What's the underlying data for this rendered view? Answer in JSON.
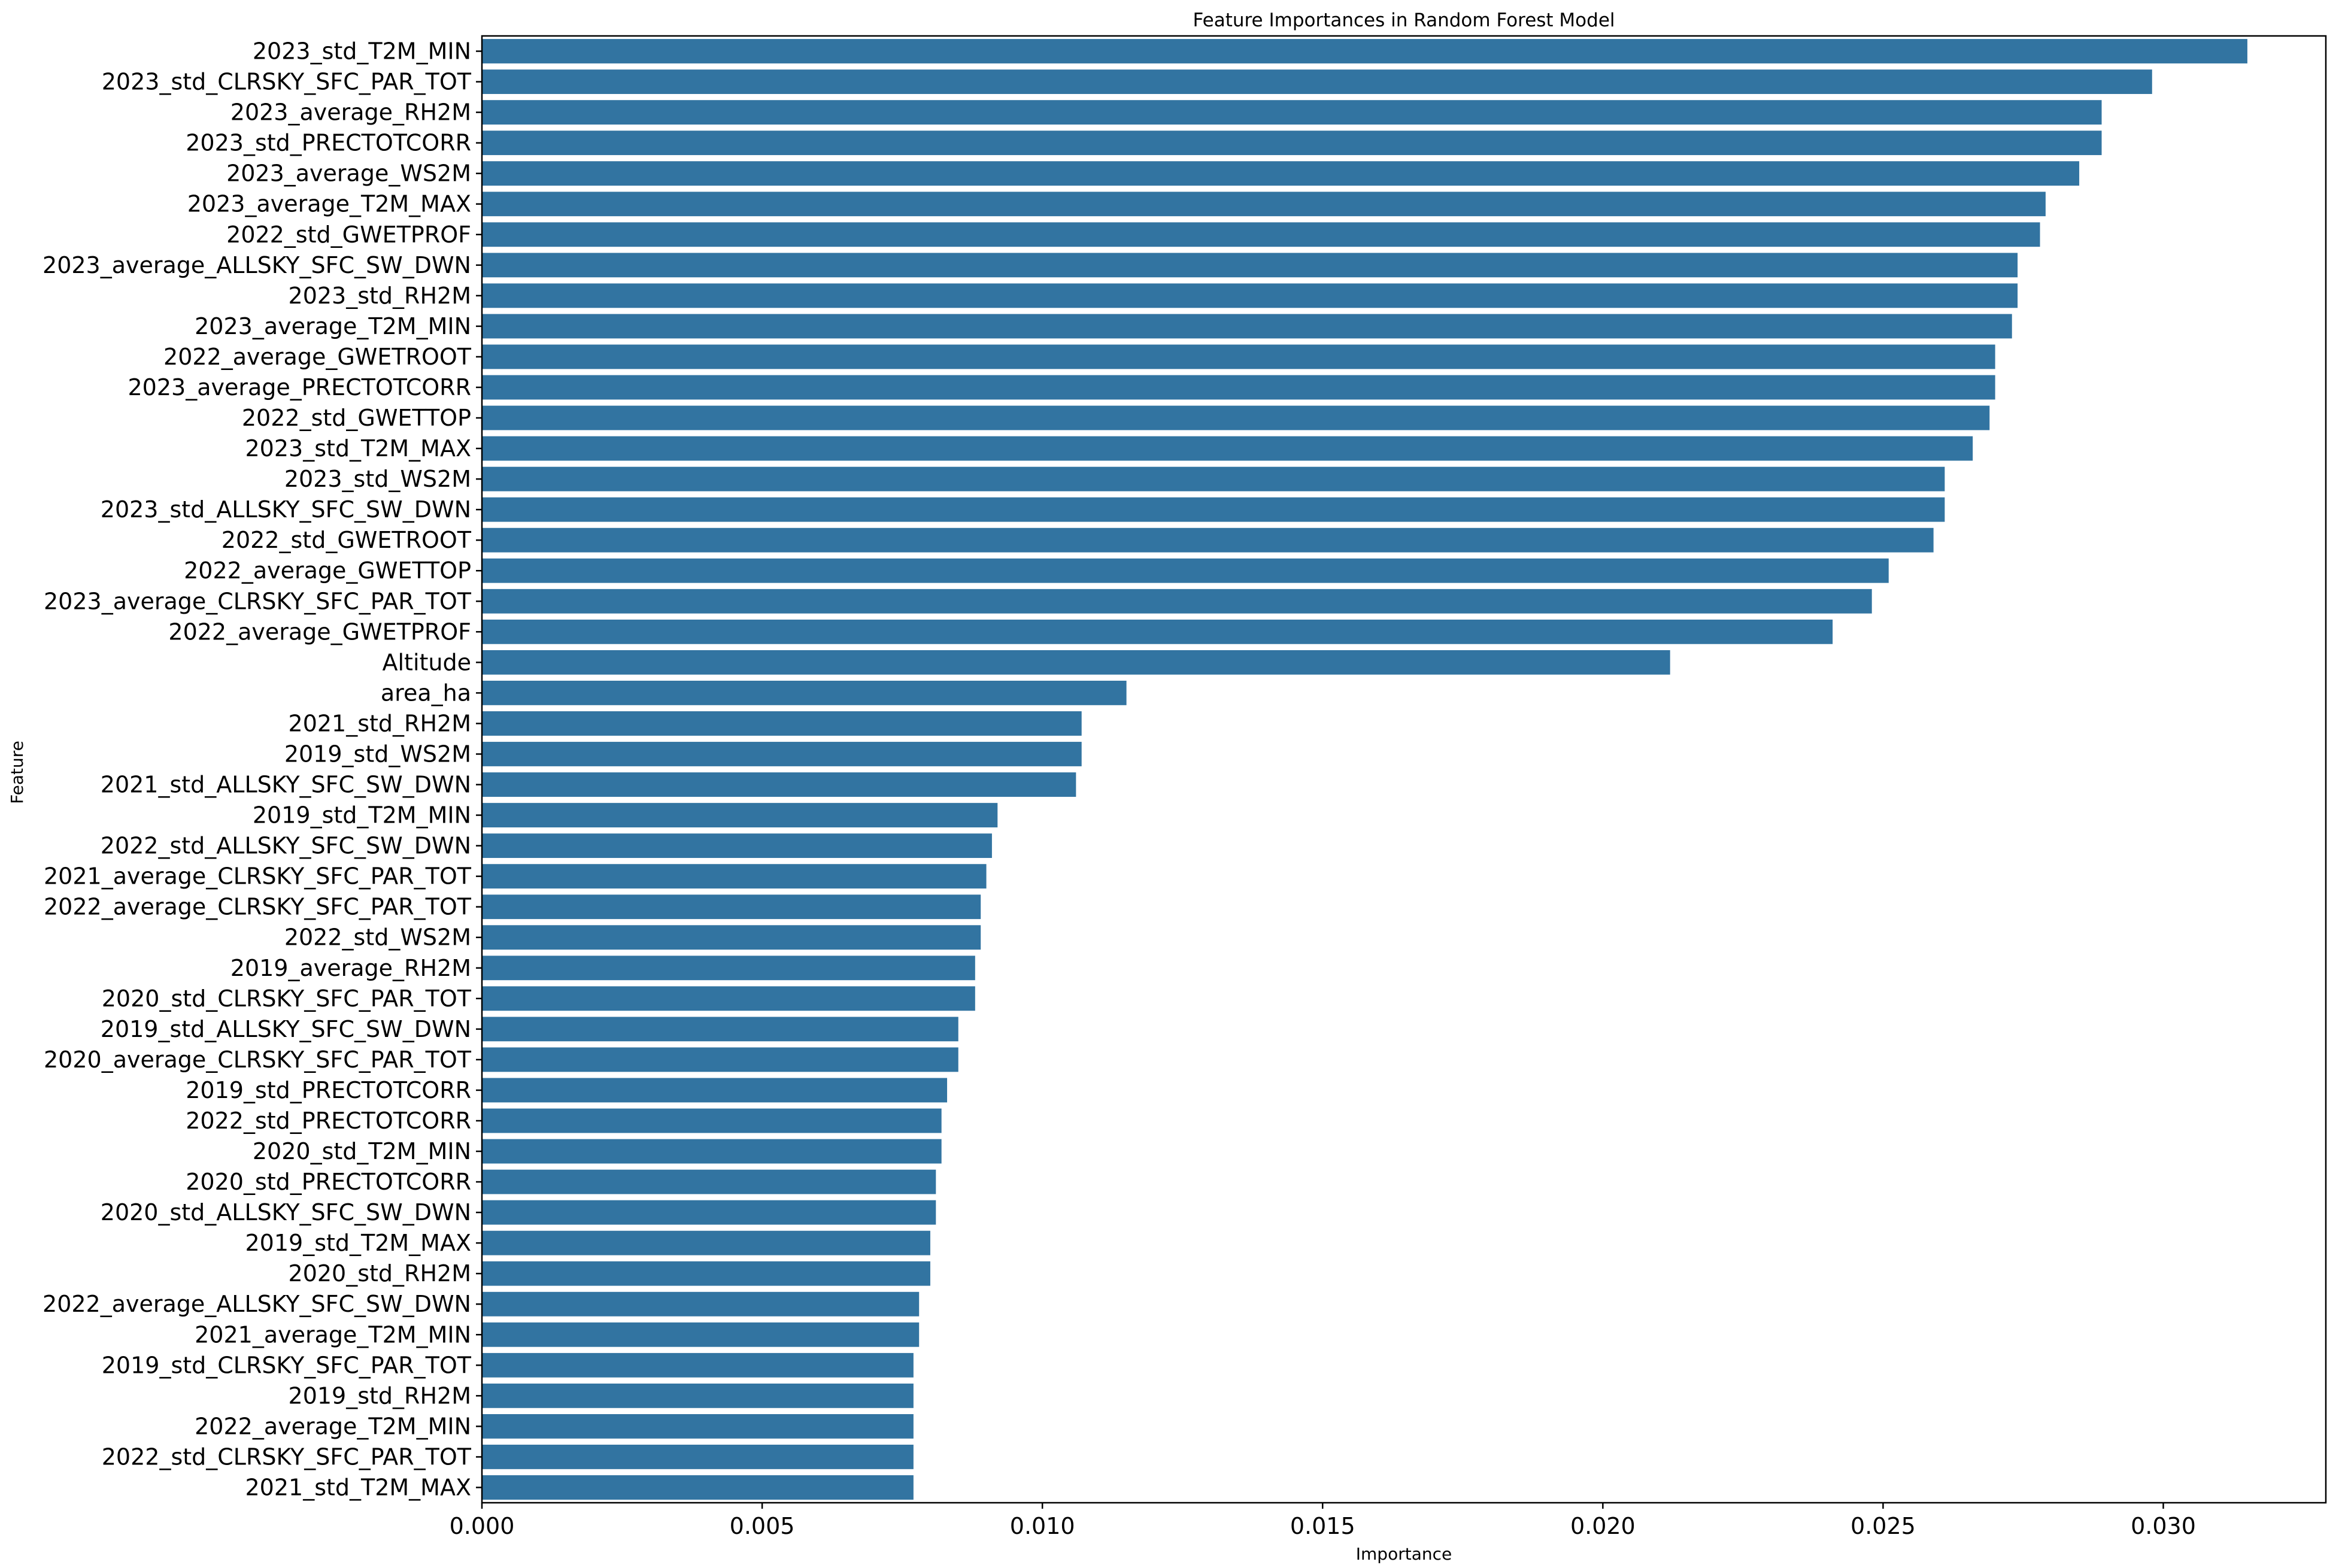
{
  "chart_data": {
    "type": "bar",
    "orientation": "horizontal",
    "title": "Feature Importances in Random Forest Model",
    "xlabel": "Importance",
    "ylabel": "Feature",
    "xlim": [
      0,
      0.0329
    ],
    "xticks": [
      "0.000",
      "0.005",
      "0.010",
      "0.015",
      "0.020",
      "0.025",
      "0.030"
    ],
    "grid": false,
    "bar_color": "#3274a1",
    "categories": [
      "2023_std_T2M_MIN",
      "2023_std_CLRSKY_SFC_PAR_TOT",
      "2023_average_RH2M",
      "2023_std_PRECTOTCORR",
      "2023_average_WS2M",
      "2023_average_T2M_MAX",
      "2022_std_GWETPROF",
      "2023_average_ALLSKY_SFC_SW_DWN",
      "2023_std_RH2M",
      "2023_average_T2M_MIN",
      "2022_average_GWETROOT",
      "2023_average_PRECTOTCORR",
      "2022_std_GWETTOP",
      "2023_std_T2M_MAX",
      "2023_std_WS2M",
      "2023_std_ALLSKY_SFC_SW_DWN",
      "2022_std_GWETROOT",
      "2022_average_GWETTOP",
      "2023_average_CLRSKY_SFC_PAR_TOT",
      "2022_average_GWETPROF",
      "Altitude",
      "area_ha",
      "2021_std_RH2M",
      "2019_std_WS2M",
      "2021_std_ALLSKY_SFC_SW_DWN",
      "2019_std_T2M_MIN",
      "2022_std_ALLSKY_SFC_SW_DWN",
      "2021_average_CLRSKY_SFC_PAR_TOT",
      "2022_average_CLRSKY_SFC_PAR_TOT",
      "2022_std_WS2M",
      "2019_average_RH2M",
      "2020_std_CLRSKY_SFC_PAR_TOT",
      "2019_std_ALLSKY_SFC_SW_DWN",
      "2020_average_CLRSKY_SFC_PAR_TOT",
      "2019_std_PRECTOTCORR",
      "2022_std_PRECTOTCORR",
      "2020_std_T2M_MIN",
      "2020_std_PRECTOTCORR",
      "2020_std_ALLSKY_SFC_SW_DWN",
      "2019_std_T2M_MAX",
      "2020_std_RH2M",
      "2022_average_ALLSKY_SFC_SW_DWN",
      "2021_average_T2M_MIN",
      "2019_std_CLRSKY_SFC_PAR_TOT",
      "2019_std_RH2M",
      "2022_average_T2M_MIN",
      "2022_std_CLRSKY_SFC_PAR_TOT",
      "2021_std_T2M_MAX"
    ],
    "values": [
      0.0315,
      0.0298,
      0.0289,
      0.0289,
      0.0285,
      0.0279,
      0.0278,
      0.0274,
      0.0274,
      0.0273,
      0.027,
      0.027,
      0.0269,
      0.0266,
      0.0261,
      0.0261,
      0.0259,
      0.0251,
      0.0248,
      0.0241,
      0.0212,
      0.0115,
      0.0107,
      0.0107,
      0.0106,
      0.0092,
      0.0091,
      0.009,
      0.0089,
      0.0089,
      0.0088,
      0.0088,
      0.0085,
      0.0085,
      0.0083,
      0.0082,
      0.0082,
      0.0081,
      0.0081,
      0.008,
      0.008,
      0.0078,
      0.0078,
      0.0077,
      0.0077,
      0.0077,
      0.0077,
      0.0077
    ]
  }
}
